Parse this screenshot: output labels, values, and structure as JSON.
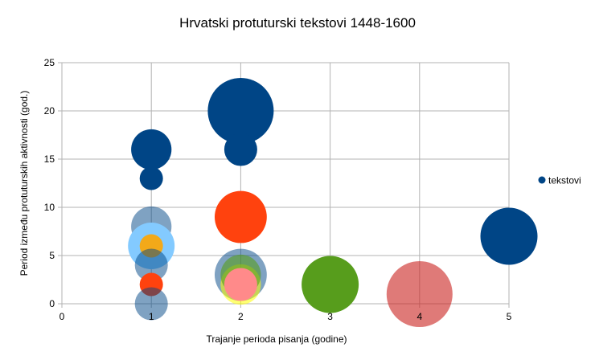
{
  "chart_data": {
    "type": "bubble",
    "title": "Hrvatski protuturski tekstovi 1448-1600",
    "xlabel": "Trajanje perioda pisanja (godine)",
    "ylabel": "Period između protuturskih aktivnosti (god.)",
    "xlim": [
      0,
      5
    ],
    "ylim": [
      0,
      25
    ],
    "xticks": [
      "0",
      "1",
      "2",
      "3",
      "4",
      "5"
    ],
    "yticks": [
      "0",
      "5",
      "10",
      "15",
      "20",
      "25"
    ],
    "grid": true,
    "legend_position": "right",
    "series": [
      {
        "name": "tekstovi",
        "color": "#004586"
      }
    ],
    "points": [
      {
        "x": 1,
        "y": 16,
        "size": 3,
        "color": "#004586",
        "opacity": 1
      },
      {
        "x": 1,
        "y": 13,
        "size": 1,
        "color": "#004586",
        "opacity": 1
      },
      {
        "x": 1,
        "y": 8,
        "size": 3,
        "color": "#004586",
        "opacity": 0.5
      },
      {
        "x": 1,
        "y": 6,
        "size": 4,
        "color": "#83caff",
        "opacity": 1
      },
      {
        "x": 1,
        "y": 6,
        "size": 1,
        "color": "#ffa500",
        "opacity": 0.9
      },
      {
        "x": 1,
        "y": 4,
        "size": 2,
        "color": "#004586",
        "opacity": 0.5
      },
      {
        "x": 1,
        "y": 2,
        "size": 1,
        "color": "#ff420e",
        "opacity": 1
      },
      {
        "x": 1,
        "y": 0,
        "size": 2,
        "color": "#004586",
        "opacity": 0.5
      },
      {
        "x": 2,
        "y": 20,
        "size": 8,
        "color": "#004586",
        "opacity": 1
      },
      {
        "x": 2,
        "y": 16,
        "size": 2,
        "color": "#004586",
        "opacity": 1
      },
      {
        "x": 2,
        "y": 9,
        "size": 5,
        "color": "#ff420e",
        "opacity": 1
      },
      {
        "x": 2,
        "y": 3,
        "size": 5,
        "color": "#004586",
        "opacity": 0.5
      },
      {
        "x": 2,
        "y": 2,
        "size": 3,
        "color": "#ffff00",
        "opacity": 0.55
      },
      {
        "x": 2,
        "y": 3,
        "size": 3,
        "color": "#579d1c",
        "opacity": 0.6
      },
      {
        "x": 2,
        "y": 2,
        "size": 2,
        "color": "#ff8a8a",
        "opacity": 1
      },
      {
        "x": 3,
        "y": 2,
        "size": 6,
        "color": "#579d1c",
        "opacity": 1
      },
      {
        "x": 4,
        "y": 1,
        "size": 8,
        "color": "#c9211e",
        "opacity": 0.6
      },
      {
        "x": 5,
        "y": 7,
        "size": 6,
        "color": "#004586",
        "opacity": 1
      }
    ]
  }
}
